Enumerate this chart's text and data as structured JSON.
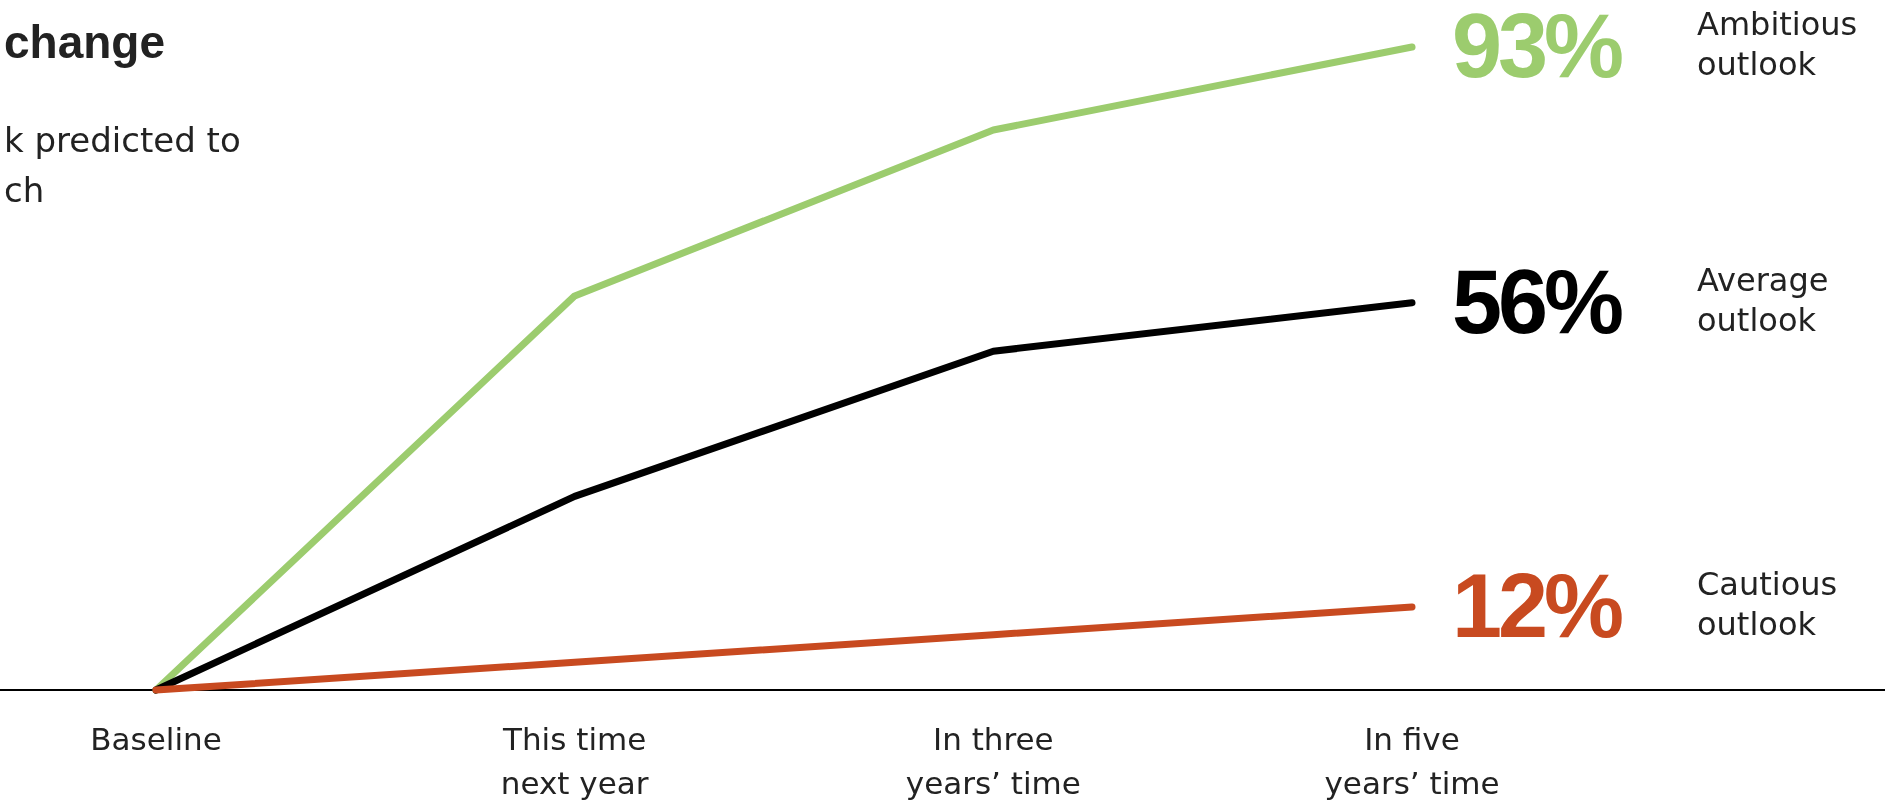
{
  "chart_data": {
    "type": "line",
    "title": "change",
    "subtitle": "k predicted to\nch",
    "categories": [
      "Baseline",
      "This time\nnext year",
      "In three\nyears’ time",
      "In five\nyears’ time"
    ],
    "tick_labels": "x",
    "grid": false,
    "marker": "none",
    "line_style": "solid",
    "series": [
      {
        "name": "Ambitious outlook",
        "color": "#9ccc6e",
        "values": [
          0,
          57,
          81,
          93
        ],
        "value_labels": [
          null,
          null,
          null,
          "93%"
        ]
      },
      {
        "name": "Average outlook",
        "color": "#000000",
        "values": [
          0,
          28,
          49,
          56
        ],
        "value_labels": [
          null,
          null,
          null,
          "56%"
        ]
      },
      {
        "name": "Cautious outlook",
        "color": "#c84a20",
        "values": [
          0,
          4,
          8,
          12
        ],
        "value_labels": [
          null,
          null,
          null,
          "12%"
        ]
      }
    ]
  }
}
